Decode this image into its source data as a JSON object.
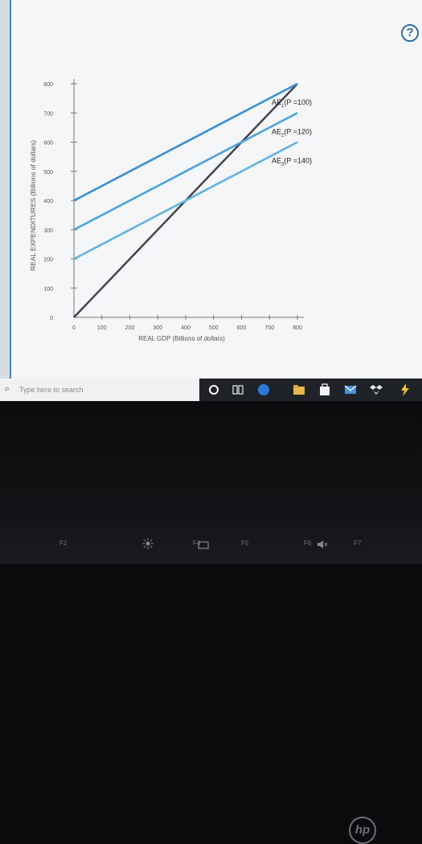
{
  "screen": {
    "help_label": "?"
  },
  "chart_data": {
    "type": "line",
    "xlabel": "REAL GDP (Billions of dollars)",
    "ylabel": "REAL EXPENDITURES (Billions of dollars)",
    "xlim": [
      0,
      800
    ],
    "ylim": [
      0,
      800
    ],
    "x_ticks": [
      "0",
      "100",
      "200",
      "300",
      "400",
      "500",
      "600",
      "700",
      "800"
    ],
    "y_ticks": [
      "0",
      "100",
      "200",
      "300",
      "400",
      "500",
      "600",
      "700",
      "800"
    ],
    "series": [
      {
        "name": "45-degree line",
        "color": "#3f3f46",
        "points": [
          [
            0,
            0
          ],
          [
            800,
            800
          ]
        ]
      },
      {
        "name": "AE1 (P = 100)",
        "color": "#3a8fd8",
        "points": [
          [
            0,
            400
          ],
          [
            800,
            800
          ]
        ]
      },
      {
        "name": "AE2 (P = 120)",
        "color": "#4aa3e0",
        "points": [
          [
            0,
            300
          ],
          [
            800,
            700
          ]
        ]
      },
      {
        "name": "AE3 (P = 140)",
        "color": "#63b3e6",
        "points": [
          [
            0,
            200
          ],
          [
            800,
            600
          ]
        ]
      }
    ],
    "labels": [
      {
        "main": "AE",
        "sub": "1",
        "rest": "(P =100)",
        "x": 800,
        "y": 800
      },
      {
        "main": "AE",
        "sub": "2",
        "rest": "(P =120)",
        "x": 800,
        "y": 700
      },
      {
        "main": "AE",
        "sub": "3",
        "rest": "(P =140)",
        "x": 800,
        "y": 600
      }
    ],
    "grid": false
  },
  "taskbar": {
    "search_placeholder": "Type here to search"
  },
  "laptop": {
    "brand": "hp",
    "fkeys": [
      "F2",
      "F4",
      "F5",
      "F6",
      "F7"
    ]
  }
}
